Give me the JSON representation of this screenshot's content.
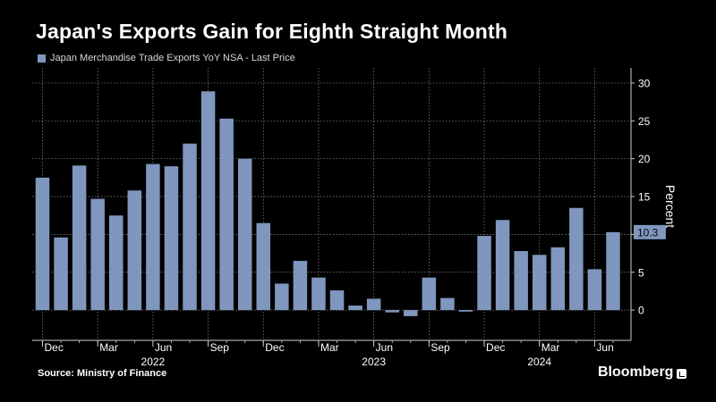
{
  "title": "Japan's Exports Gain for Eighth Straight Month",
  "legend_label": "Japan Merchandise Trade Exports YoY NSA - Last Price",
  "source": "Source:  Ministry of Finance",
  "brand": "Bloomberg",
  "colors": {
    "bar": "#7f96bf",
    "background": "#000000",
    "grid": "#8a8a8a",
    "text": "#ffffff"
  },
  "chart_data": {
    "type": "bar",
    "categories": [
      "Dec 2021",
      "Jan 2022",
      "Feb 2022",
      "Mar 2022",
      "Apr 2022",
      "May 2022",
      "Jun 2022",
      "Jul 2022",
      "Aug 2022",
      "Sep 2022",
      "Oct 2022",
      "Nov 2022",
      "Dec 2022",
      "Jan 2023",
      "Feb 2023",
      "Mar 2023",
      "Apr 2023",
      "May 2023",
      "Jun 2023",
      "Jul 2023",
      "Aug 2023",
      "Sep 2023",
      "Oct 2023",
      "Nov 2023",
      "Dec 2023",
      "Jan 2024",
      "Feb 2024",
      "Mar 2024",
      "Apr 2024",
      "May 2024",
      "Jun 2024",
      "Jul 2024"
    ],
    "series": [
      {
        "name": "Japan Merchandise Trade Exports YoY NSA - Last Price",
        "values": [
          17.5,
          9.6,
          19.1,
          14.7,
          12.5,
          15.8,
          19.3,
          19.0,
          22.0,
          28.9,
          25.3,
          20.0,
          11.5,
          3.5,
          6.5,
          4.3,
          2.6,
          0.6,
          1.5,
          -0.3,
          -0.8,
          4.3,
          1.6,
          -0.2,
          9.8,
          11.9,
          7.8,
          7.3,
          8.3,
          13.5,
          5.4,
          10.3
        ]
      }
    ],
    "last_value_label": "10.3",
    "ylabel": "Percent",
    "ylim": [
      -4,
      32
    ],
    "yticks": [
      0,
      5,
      10,
      15,
      20,
      25,
      30
    ],
    "ytick_labels": [
      "0",
      "5",
      "10",
      "15",
      "20",
      "25",
      "30"
    ],
    "xticks": [
      {
        "index": 0,
        "label": "Dec"
      },
      {
        "index": 3,
        "label": "Mar"
      },
      {
        "index": 6,
        "label": "Jun"
      },
      {
        "index": 9,
        "label": "Sep"
      },
      {
        "index": 12,
        "label": "Dec"
      },
      {
        "index": 15,
        "label": "Mar"
      },
      {
        "index": 18,
        "label": "Jun"
      },
      {
        "index": 21,
        "label": "Sep"
      },
      {
        "index": 24,
        "label": "Dec"
      },
      {
        "index": 27,
        "label": "Mar"
      },
      {
        "index": 30,
        "label": "Jun"
      }
    ],
    "year_labels": [
      {
        "index": 6,
        "label": "2022"
      },
      {
        "index": 18,
        "label": "2023"
      },
      {
        "index": 27,
        "label": "2024"
      }
    ],
    "grid": true
  }
}
